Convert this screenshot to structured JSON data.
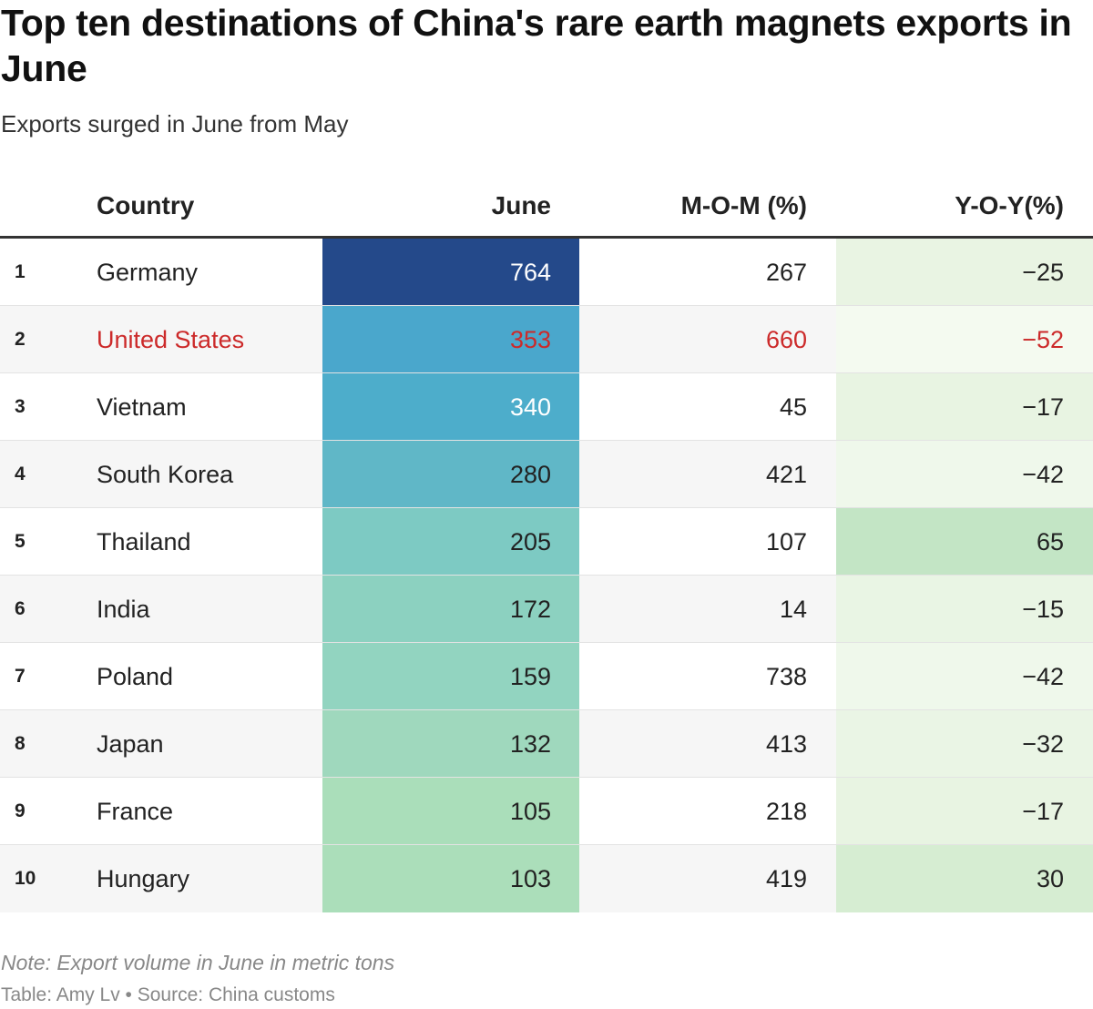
{
  "title": "Top ten destinations of China's rare earth magnets exports in June",
  "subtitle": "Exports surged in June from May",
  "chart_data": {
    "type": "table",
    "columns": [
      "Country",
      "June",
      "M-O-M (%)",
      "Y-O-Y(%)"
    ],
    "rows": [
      {
        "rank": "1",
        "country": "Germany",
        "june": "764",
        "mom": "267",
        "yoy": "−25",
        "highlight": false
      },
      {
        "rank": "2",
        "country": "United States",
        "june": "353",
        "mom": "660",
        "yoy": "−52",
        "highlight": true
      },
      {
        "rank": "3",
        "country": "Vietnam",
        "june": "340",
        "mom": "45",
        "yoy": "−17",
        "highlight": false
      },
      {
        "rank": "4",
        "country": "South Korea",
        "june": "280",
        "mom": "421",
        "yoy": "−42",
        "highlight": false
      },
      {
        "rank": "5",
        "country": "Thailand",
        "june": "205",
        "mom": "107",
        "yoy": "65",
        "highlight": false
      },
      {
        "rank": "6",
        "country": "India",
        "june": "172",
        "mom": "14",
        "yoy": "−15",
        "highlight": false
      },
      {
        "rank": "7",
        "country": "Poland",
        "june": "159",
        "mom": "738",
        "yoy": "−42",
        "highlight": false
      },
      {
        "rank": "8",
        "country": "Japan",
        "june": "132",
        "mom": "413",
        "yoy": "−32",
        "highlight": false
      },
      {
        "rank": "9",
        "country": "France",
        "june": "105",
        "mom": "218",
        "yoy": "−17",
        "highlight": false
      },
      {
        "rank": "10",
        "country": "Hungary",
        "june": "103",
        "mom": "419",
        "yoy": "30",
        "highlight": false
      }
    ],
    "june_colors": [
      "#24498a",
      "#4aa7cc",
      "#4dadcb",
      "#60b7c7",
      "#7dcac3",
      "#8cd1c0",
      "#92d4c0",
      "#9fd8bd",
      "#aadeba",
      "#abdeba"
    ],
    "yoy_colors": [
      "#e9f4e3",
      "#f4faf0",
      "#e8f4e2",
      "#eff8eb",
      "#c3e5c5",
      "#e9f5e4",
      "#eff8eb",
      "#eaf5e5",
      "#e8f4e2",
      "#d6edd2"
    ]
  },
  "note": "Note: Export volume in June in metric tons",
  "source": "Table: Amy Lv • Source: China customs",
  "colors": {
    "highlight": "#cc2a2a",
    "header_rule": "#333333",
    "row_alt": "#f6f6f6"
  }
}
